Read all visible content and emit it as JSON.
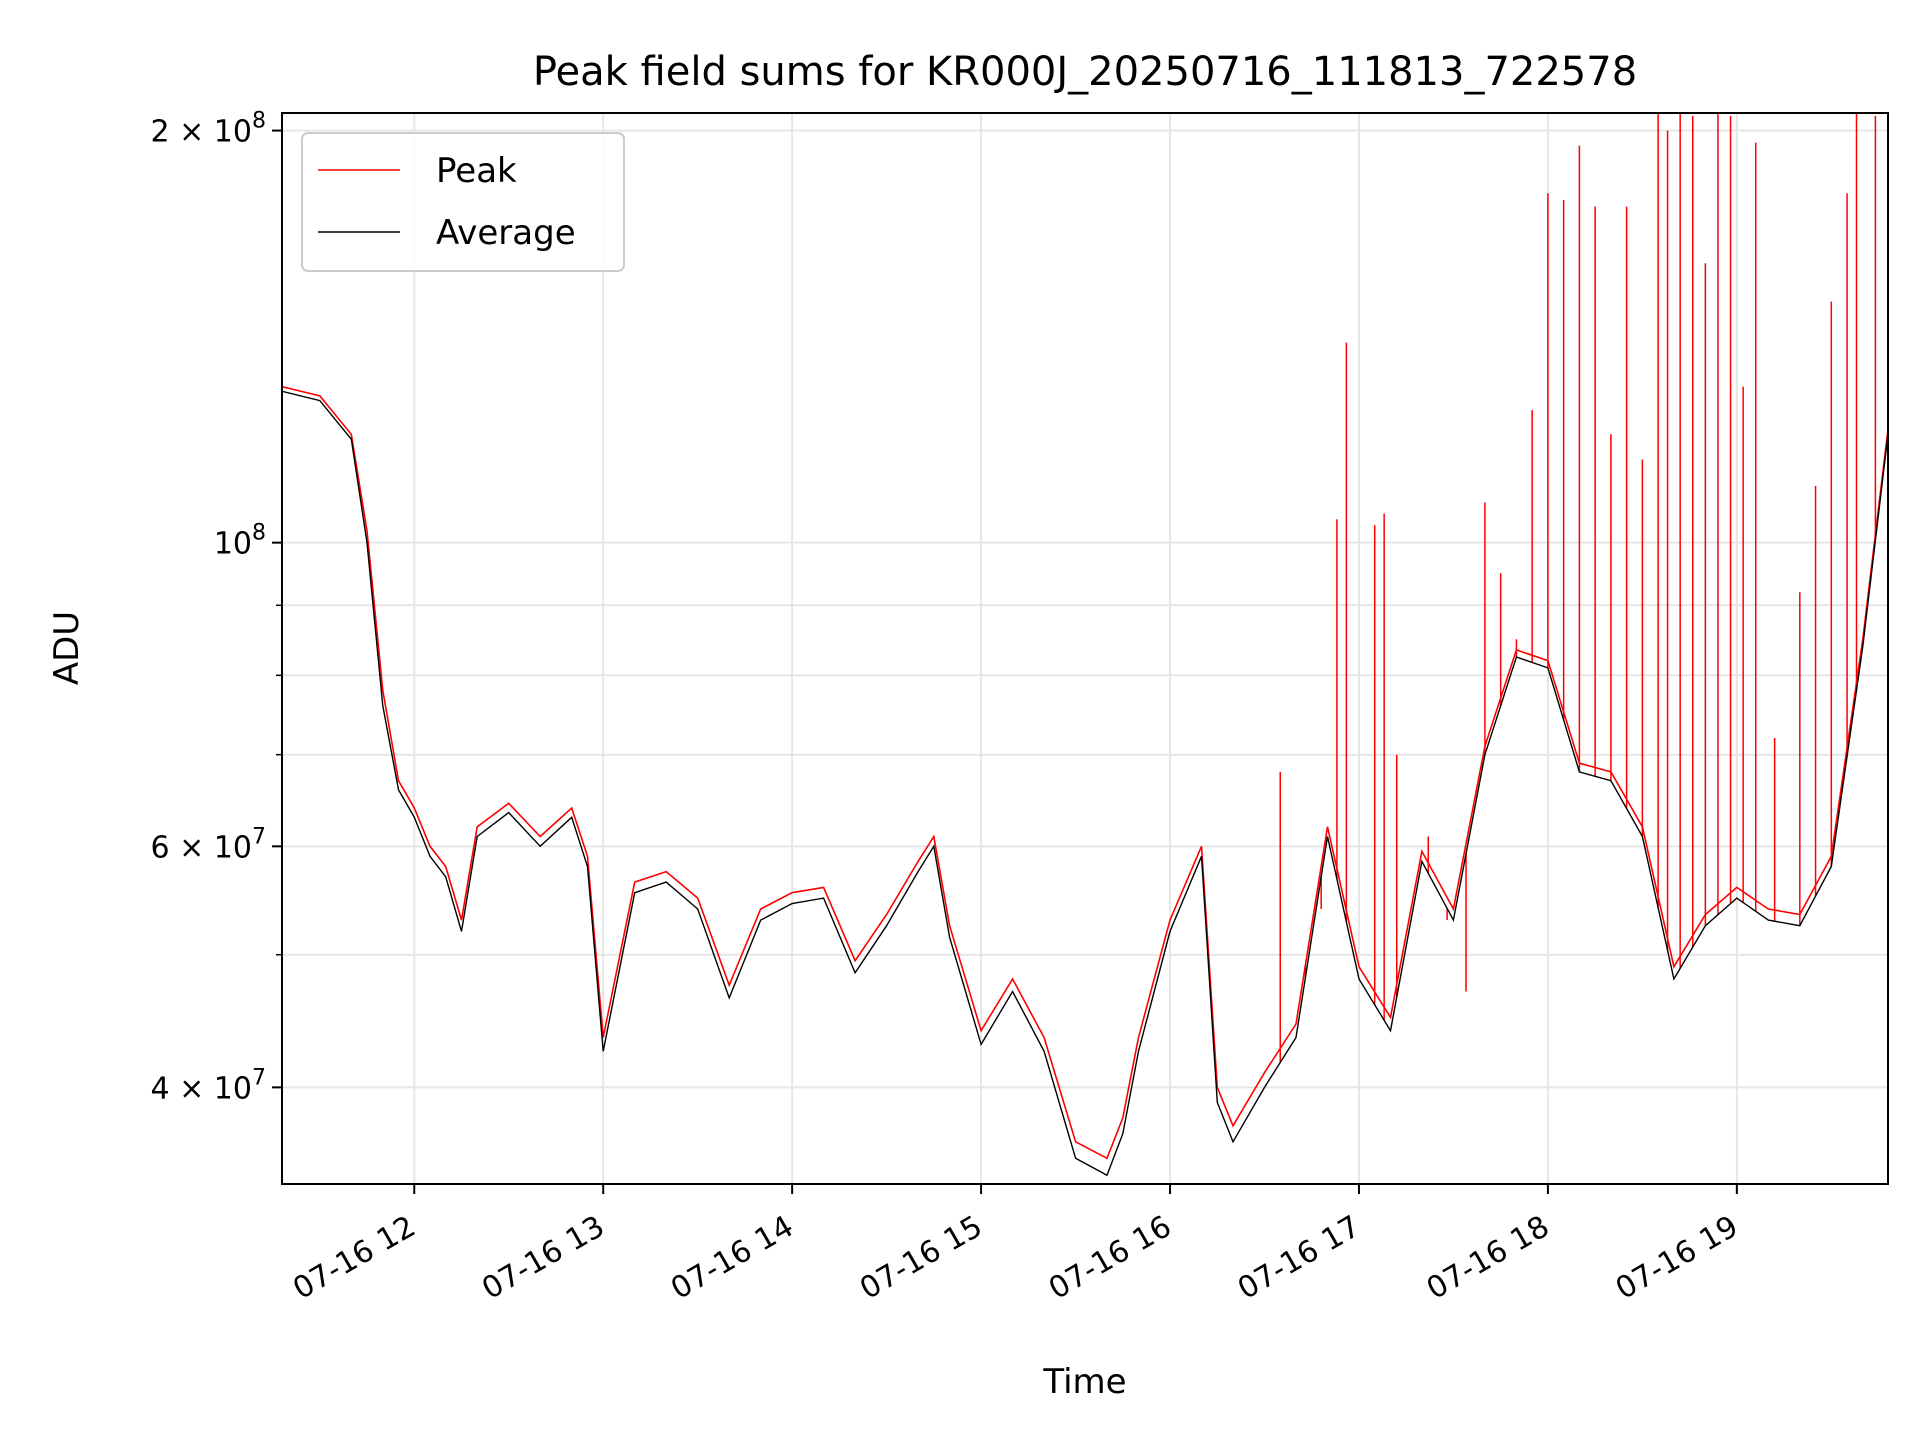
{
  "chart_data": {
    "type": "line",
    "title": "Peak field sums for KR000J_20250716_111813_722578",
    "xlabel": "Time",
    "ylabel": "ADU",
    "x_range": [
      "07-16 11:18",
      "07-16 19:48"
    ],
    "ylim": [
      34000000,
      206000000
    ],
    "y_scale": "log",
    "grid": true,
    "legend_position": "top-left",
    "x_ticks": [
      "07-16 12",
      "07-16 13",
      "07-16 14",
      "07-16 15",
      "07-16 16",
      "07-16 17",
      "07-16 18",
      "07-16 19"
    ],
    "y_ticks": [
      {
        "value": 40000000,
        "base": "4",
        "exp": "7"
      },
      {
        "value": 60000000,
        "base": "6",
        "exp": "7"
      },
      {
        "value": 100000000,
        "base": "10",
        "exp": "8"
      },
      {
        "value": 200000000,
        "base": "2",
        "exp": "8"
      }
    ],
    "y_minor_ticks": [
      50000000,
      70000000,
      80000000,
      90000000
    ],
    "colors": {
      "peak": "#ff0000",
      "average": "#000000"
    },
    "series": [
      {
        "name": "Peak",
        "color": "#ff0000",
        "x": [
          "11:18",
          "11:30",
          "11:40",
          "11:45",
          "11:50",
          "11:55",
          "12:00",
          "12:05",
          "12:10",
          "12:15",
          "12:20",
          "12:30",
          "12:40",
          "12:50",
          "12:55",
          "13:00",
          "13:10",
          "13:20",
          "13:30",
          "13:40",
          "13:50",
          "14:00",
          "14:10",
          "14:20",
          "14:30",
          "14:40",
          "14:45",
          "14:50",
          "15:00",
          "15:10",
          "15:20",
          "15:30",
          "15:40",
          "15:45",
          "15:50",
          "16:00",
          "16:10",
          "16:15",
          "16:20",
          "16:30",
          "16:40",
          "16:50",
          "17:00",
          "17:10",
          "17:20",
          "17:30",
          "17:40",
          "17:50",
          "18:00",
          "18:10",
          "18:20",
          "18:30",
          "18:40",
          "18:50",
          "19:00",
          "19:10",
          "19:20",
          "19:30",
          "19:40",
          "19:48"
        ],
        "y": [
          130000000,
          128000000,
          120000000,
          102000000,
          78000000,
          67000000,
          64000000,
          60000000,
          58000000,
          53000000,
          62000000,
          64500000,
          61000000,
          64000000,
          59000000,
          43500000,
          56500000,
          57500000,
          55000000,
          47500000,
          54000000,
          55500000,
          56000000,
          49500000,
          53500000,
          58500000,
          61000000,
          52500000,
          44000000,
          48000000,
          43500000,
          36500000,
          35500000,
          38000000,
          43500000,
          53000000,
          60000000,
          40000000,
          37500000,
          41000000,
          44500000,
          62000000,
          49000000,
          45000000,
          59500000,
          54000000,
          71000000,
          83500000,
          82000000,
          69000000,
          68000000,
          62000000,
          49000000,
          53500000,
          56000000,
          54000000,
          53500000,
          59000000,
          85000000,
          121000000
        ]
      },
      {
        "name": "Average",
        "color": "#000000",
        "x": [
          "11:18",
          "11:30",
          "11:40",
          "11:45",
          "11:50",
          "11:55",
          "12:00",
          "12:05",
          "12:10",
          "12:15",
          "12:20",
          "12:30",
          "12:40",
          "12:50",
          "12:55",
          "13:00",
          "13:10",
          "13:20",
          "13:30",
          "13:40",
          "13:50",
          "14:00",
          "14:10",
          "14:20",
          "14:30",
          "14:40",
          "14:45",
          "14:50",
          "15:00",
          "15:10",
          "15:20",
          "15:30",
          "15:40",
          "15:45",
          "15:50",
          "16:00",
          "16:10",
          "16:15",
          "16:20",
          "16:30",
          "16:40",
          "16:50",
          "17:00",
          "17:10",
          "17:20",
          "17:30",
          "17:40",
          "17:50",
          "18:00",
          "18:10",
          "18:20",
          "18:30",
          "18:40",
          "18:50",
          "19:00",
          "19:10",
          "19:20",
          "19:30",
          "19:40",
          "19:48"
        ],
        "y": [
          129000000,
          127000000,
          119000000,
          100000000,
          76000000,
          66000000,
          63000000,
          59000000,
          57000000,
          52000000,
          61000000,
          63500000,
          60000000,
          63000000,
          58000000,
          42500000,
          55500000,
          56500000,
          54000000,
          46500000,
          53000000,
          54500000,
          55000000,
          48500000,
          52500000,
          57500000,
          60000000,
          51500000,
          43000000,
          47000000,
          42500000,
          35500000,
          34500000,
          37000000,
          42500000,
          52000000,
          59000000,
          39000000,
          36500000,
          40000000,
          43500000,
          61000000,
          48000000,
          44000000,
          58500000,
          53000000,
          70000000,
          82500000,
          81000000,
          68000000,
          67000000,
          61000000,
          48000000,
          52500000,
          55000000,
          53000000,
          52500000,
          58000000,
          84000000,
          120000000
        ]
      }
    ],
    "peak_spikes": [
      {
        "x": "16:35",
        "y": 68000000
      },
      {
        "x": "16:43",
        "y": 49000000
      },
      {
        "x": "16:48",
        "y": 54000000
      },
      {
        "x": "16:53",
        "y": 104000000
      },
      {
        "x": "16:56",
        "y": 140000000
      },
      {
        "x": "17:05",
        "y": 103000000
      },
      {
        "x": "17:08",
        "y": 105000000
      },
      {
        "x": "17:12",
        "y": 70000000
      },
      {
        "x": "17:22",
        "y": 61000000
      },
      {
        "x": "17:28",
        "y": 53000000
      },
      {
        "x": "17:34",
        "y": 47000000
      },
      {
        "x": "17:40",
        "y": 107000000
      },
      {
        "x": "17:45",
        "y": 95000000
      },
      {
        "x": "17:50",
        "y": 85000000
      },
      {
        "x": "17:55",
        "y": 125000000
      },
      {
        "x": "18:00",
        "y": 180000000
      },
      {
        "x": "18:05",
        "y": 178000000
      },
      {
        "x": "18:10",
        "y": 195000000
      },
      {
        "x": "18:15",
        "y": 176000000
      },
      {
        "x": "18:20",
        "y": 120000000
      },
      {
        "x": "18:25",
        "y": 176000000
      },
      {
        "x": "18:30",
        "y": 115000000
      },
      {
        "x": "18:35",
        "y": 206000000
      },
      {
        "x": "18:38",
        "y": 200000000
      },
      {
        "x": "18:42",
        "y": 206000000
      },
      {
        "x": "18:46",
        "y": 205000000
      },
      {
        "x": "18:50",
        "y": 160000000
      },
      {
        "x": "18:54",
        "y": 206000000
      },
      {
        "x": "18:58",
        "y": 205000000
      },
      {
        "x": "19:02",
        "y": 130000000
      },
      {
        "x": "19:06",
        "y": 196000000
      },
      {
        "x": "19:12",
        "y": 72000000
      },
      {
        "x": "19:20",
        "y": 92000000
      },
      {
        "x": "19:25",
        "y": 110000000
      },
      {
        "x": "19:30",
        "y": 150000000
      },
      {
        "x": "19:35",
        "y": 180000000
      },
      {
        "x": "19:38",
        "y": 206000000
      },
      {
        "x": "19:44",
        "y": 205000000
      }
    ]
  }
}
